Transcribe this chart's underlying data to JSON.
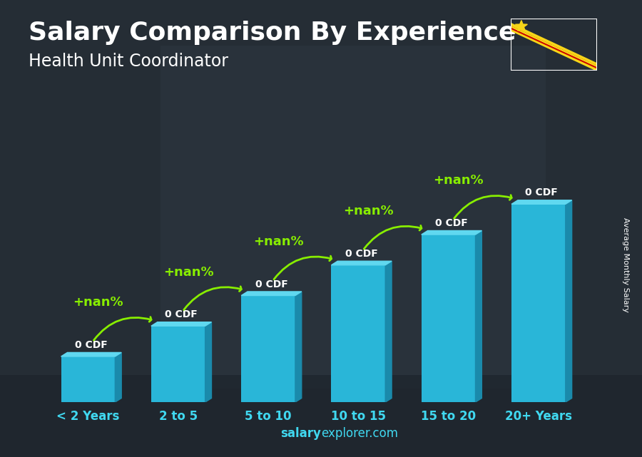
{
  "title": "Salary Comparison By Experience",
  "subtitle": "Health Unit Coordinator",
  "categories": [
    "< 2 Years",
    "2 to 5",
    "5 to 10",
    "10 to 15",
    "15 to 20",
    "20+ Years"
  ],
  "values": [
    1.5,
    2.5,
    3.5,
    4.5,
    5.5,
    6.5
  ],
  "bar_color_front": "#29b6d8",
  "bar_color_side": "#1a8aab",
  "bar_color_top": "#60d8f0",
  "bar_labels": [
    "0 CDF",
    "0 CDF",
    "0 CDF",
    "0 CDF",
    "0 CDF",
    "0 CDF"
  ],
  "pct_labels": [
    "+nan%",
    "+nan%",
    "+nan%",
    "+nan%",
    "+nan%"
  ],
  "ylabel": "Average Monthly Salary",
  "footer_bold": "salary",
  "footer_regular": "explorer.com",
  "title_fontsize": 26,
  "subtitle_fontsize": 17,
  "bar_label_fontsize": 10,
  "pct_fontsize": 13,
  "cat_fontsize": 12,
  "ylabel_fontsize": 8,
  "footer_fontsize": 12,
  "bar_width": 0.6,
  "ylim": [
    0,
    9.0
  ],
  "green_color": "#88ee00",
  "white": "#ffffff",
  "cyan_text": "#40d8f0",
  "bg_dark": "#1a2a35",
  "bg_overlay_alpha": 0.62
}
